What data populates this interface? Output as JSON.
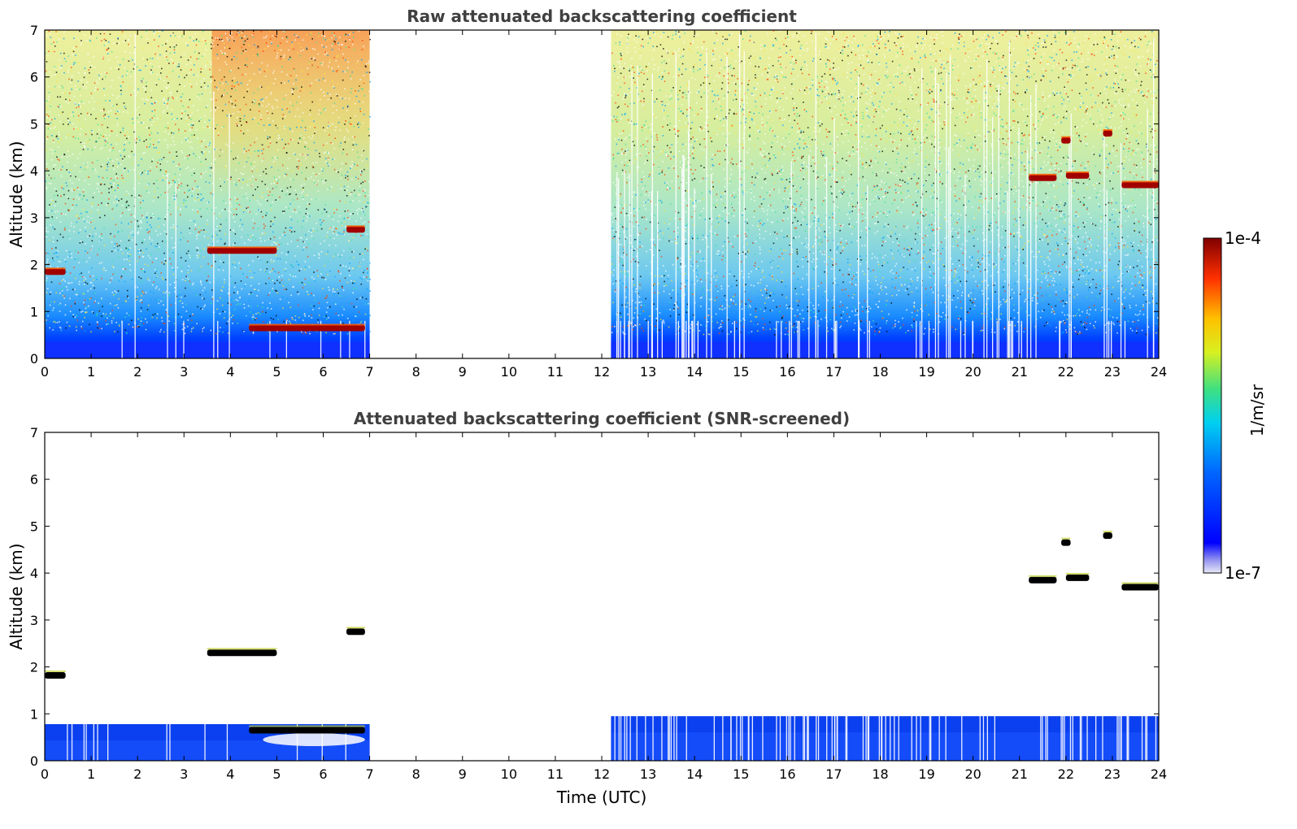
{
  "chart_data": [
    {
      "type": "heatmap",
      "title": "Raw attenuated backscattering coefficient",
      "ylabel": "Altitude (km)",
      "xlabel": "",
      "xlim": [
        0,
        24
      ],
      "ylim": [
        0,
        7
      ],
      "xticks": [
        "0",
        "1",
        "2",
        "3",
        "4",
        "5",
        "6",
        "7",
        "8",
        "9",
        "10",
        "11",
        "12",
        "13",
        "14",
        "15",
        "16",
        "17",
        "18",
        "19",
        "20",
        "21",
        "22",
        "23",
        "24"
      ],
      "yticks": [
        "0",
        "1",
        "2",
        "3",
        "4",
        "5",
        "6",
        "7"
      ],
      "data_gaps": [
        [
          7.0,
          12.2
        ]
      ],
      "features": [
        {
          "x": [
            0.0,
            0.45
          ],
          "y": 1.85,
          "level": "high"
        },
        {
          "x": [
            3.5,
            5.0
          ],
          "y": 2.3,
          "level": "high"
        },
        {
          "x": [
            6.5,
            6.9
          ],
          "y": 2.75,
          "level": "high"
        },
        {
          "x": [
            4.4,
            6.9
          ],
          "y": 0.65,
          "level": "high"
        },
        {
          "x": [
            21.2,
            21.8
          ],
          "y": 3.85,
          "level": "high"
        },
        {
          "x": [
            22.0,
            22.5
          ],
          "y": 3.9,
          "level": "high"
        },
        {
          "x": [
            23.2,
            24.0
          ],
          "y": 3.7,
          "level": "high"
        },
        {
          "x": [
            21.9,
            22.1
          ],
          "y": 4.65,
          "level": "high"
        },
        {
          "x": [
            22.8,
            23.0
          ],
          "y": 4.8,
          "level": "high"
        }
      ]
    },
    {
      "type": "heatmap",
      "title": "Attenuated backscattering coefficient (SNR-screened)",
      "ylabel": "Altitude (km)",
      "xlabel": "Time (UTC)",
      "xlim": [
        0,
        24
      ],
      "ylim": [
        0,
        7
      ],
      "xticks": [
        "0",
        "1",
        "2",
        "3",
        "4",
        "5",
        "6",
        "7",
        "8",
        "9",
        "10",
        "11",
        "12",
        "13",
        "14",
        "15",
        "16",
        "17",
        "18",
        "19",
        "20",
        "21",
        "22",
        "23",
        "24"
      ],
      "yticks": [
        "0",
        "1",
        "2",
        "3",
        "4",
        "5",
        "6",
        "7"
      ],
      "data_gaps": [
        [
          7.0,
          12.2
        ]
      ],
      "features": [
        {
          "x": [
            0.0,
            0.45
          ],
          "y": 1.82,
          "level": "saturated"
        },
        {
          "x": [
            3.5,
            5.0
          ],
          "y": 2.3,
          "level": "saturated"
        },
        {
          "x": [
            6.5,
            6.9
          ],
          "y": 2.75,
          "level": "saturated"
        },
        {
          "x": [
            4.4,
            6.9
          ],
          "y": 0.65,
          "level": "saturated"
        },
        {
          "x": [
            21.2,
            21.8
          ],
          "y": 3.85,
          "level": "saturated"
        },
        {
          "x": [
            22.0,
            22.5
          ],
          "y": 3.9,
          "level": "saturated"
        },
        {
          "x": [
            23.2,
            24.0
          ],
          "y": 3.7,
          "level": "saturated"
        },
        {
          "x": [
            21.9,
            22.1
          ],
          "y": 4.65,
          "level": "saturated"
        },
        {
          "x": [
            22.8,
            23.0
          ],
          "y": 4.8,
          "level": "saturated"
        }
      ]
    }
  ],
  "colorbar": {
    "label": "1/m/sr",
    "max_label": "1e-4",
    "min_label": "1e-7",
    "colormap": "jet",
    "scale": "log"
  }
}
